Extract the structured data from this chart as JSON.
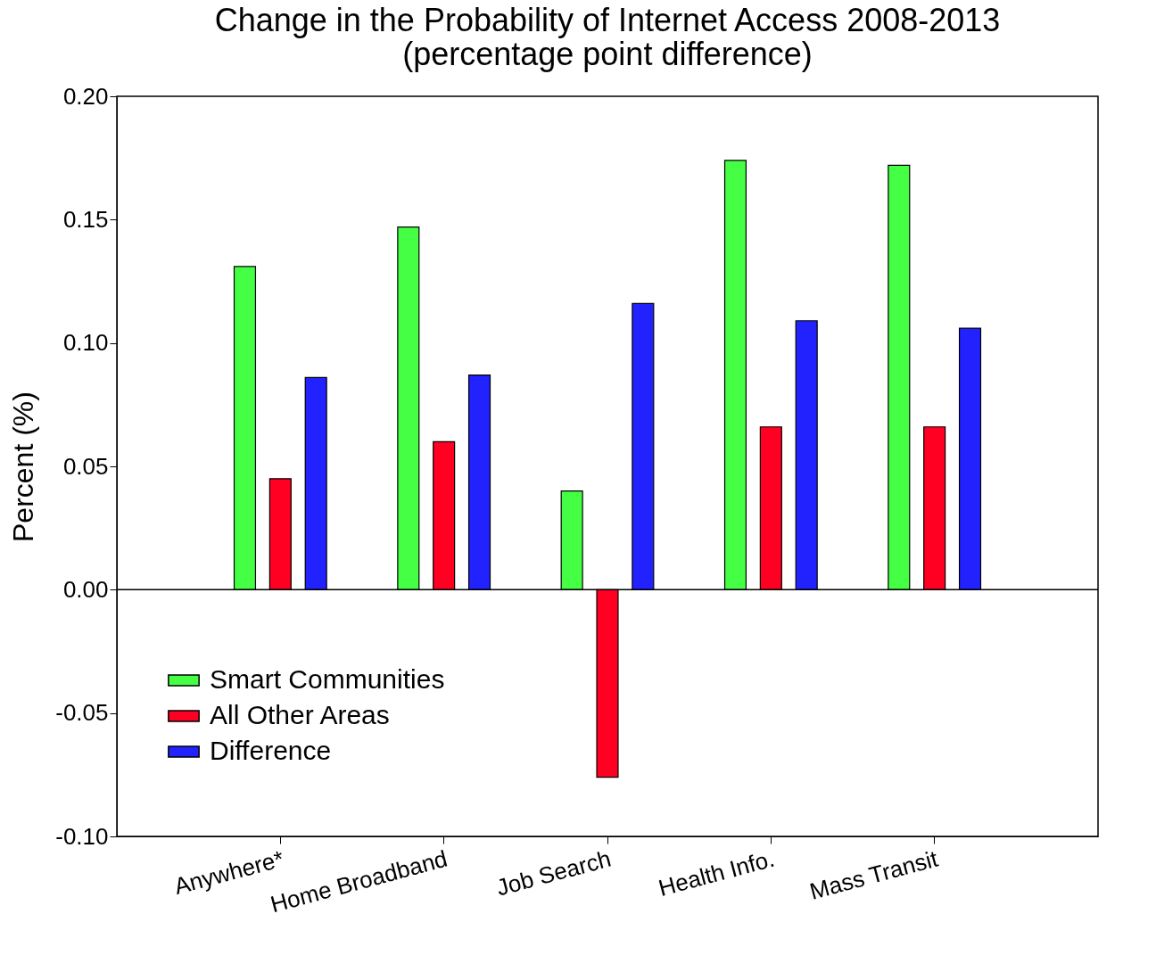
{
  "chart_data": {
    "type": "bar",
    "title": "Change in the Probability of Internet Access 2008-2013",
    "subtitle": "(percentage point difference)",
    "ylabel": "Percent (%)",
    "categories": [
      "Anywhere*",
      "Home Broadband",
      "Job Search",
      "Health Info.",
      "Mass Transit"
    ],
    "series": [
      {
        "name": "Smart Communities",
        "color": "#44ff44",
        "values": [
          0.131,
          0.147,
          0.04,
          0.174,
          0.172
        ]
      },
      {
        "name": "All Other Areas",
        "color": "#ff0022",
        "values": [
          0.045,
          0.06,
          -0.076,
          0.066,
          0.066
        ]
      },
      {
        "name": "Difference",
        "color": "#2222ff",
        "values": [
          0.086,
          0.087,
          0.116,
          0.109,
          0.106
        ]
      }
    ],
    "ylim": [
      -0.1,
      0.2
    ],
    "yticks": [
      {
        "value": -0.1,
        "label": "-0.10"
      },
      {
        "value": -0.05,
        "label": "-0.05"
      },
      {
        "value": 0,
        "label": "0.00"
      },
      {
        "value": 0.05,
        "label": "0.05"
      },
      {
        "value": 0.1,
        "label": "0.10"
      },
      {
        "value": 0.15,
        "label": "0.15"
      },
      {
        "value": 0.2,
        "label": "0.20"
      }
    ],
    "ref_lines": [
      {
        "axis": "y",
        "value": 0
      }
    ],
    "grid": false,
    "legend": "bottom left"
  }
}
